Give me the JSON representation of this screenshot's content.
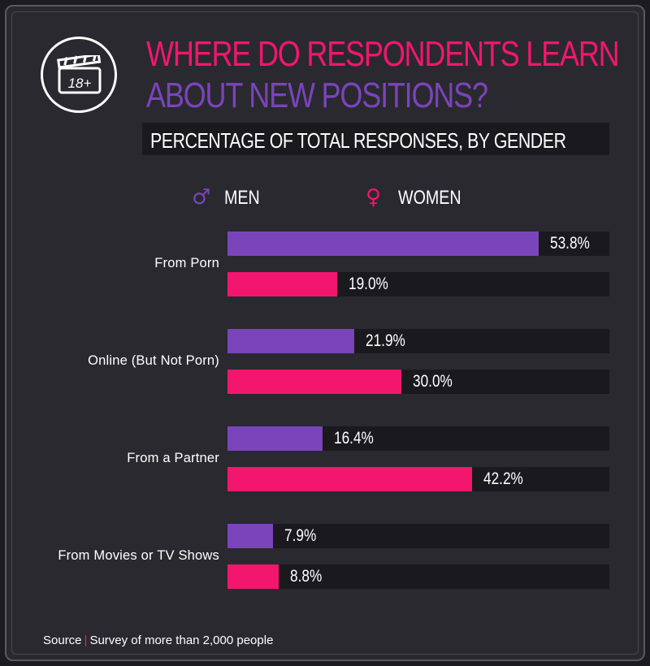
{
  "header": {
    "title_line1": "WHERE DO RESPONDENTS LEARN",
    "title_line2": "ABOUT NEW POSITIONS?",
    "subtitle": "PERCENTAGE OF TOTAL RESPONSES, BY GENDER",
    "badge_text": "18+"
  },
  "legend": {
    "men_symbol": "♂",
    "men_label": "MEN",
    "women_symbol": "♀",
    "women_label": "WOMEN"
  },
  "colors": {
    "men": "#7a44ba",
    "women": "#f2166e"
  },
  "footer": {
    "source_label": "Source",
    "separator": "|",
    "source_text": "Survey of more than 2,000 people"
  },
  "chart_data": {
    "type": "bar",
    "orientation": "horizontal",
    "title": "WHERE DO RESPONDENTS LEARN ABOUT NEW POSITIONS?",
    "subtitle": "PERCENTAGE OF TOTAL RESPONSES, BY GENDER",
    "categories": [
      "From Porn",
      "Online (But Not Porn)",
      "From a Partner",
      "From Movies or TV Shows"
    ],
    "series": [
      {
        "name": "MEN",
        "values": [
          53.8,
          21.9,
          16.4,
          7.9
        ],
        "labels": [
          "53.8%",
          "21.9%",
          "16.4%",
          "7.9%"
        ]
      },
      {
        "name": "WOMEN",
        "values": [
          19.0,
          30.0,
          42.2,
          8.8
        ],
        "labels": [
          "19.0%",
          "30.0%",
          "42.2%",
          "8.8%"
        ]
      }
    ],
    "xlim": [
      0,
      66
    ],
    "legend_position": "top",
    "grid": false
  }
}
